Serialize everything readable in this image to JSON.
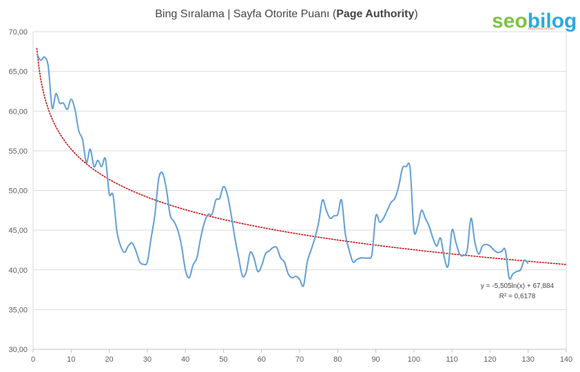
{
  "chart_data": {
    "type": "line",
    "title_prefix": "Bing Sıralama | Sayfa Otorite Puanı (",
    "title_bold": "Page Authority",
    "title_suffix": ")",
    "xlim": [
      0,
      140
    ],
    "ylim": [
      30,
      70
    ],
    "x_ticks": [
      0,
      10,
      20,
      30,
      40,
      50,
      60,
      70,
      80,
      90,
      100,
      110,
      120,
      130,
      140
    ],
    "y_ticks": [
      "30,00",
      "35,00",
      "40,00",
      "45,00",
      "50,00",
      "55,00",
      "60,00",
      "65,00",
      "70,00"
    ],
    "grid": true,
    "series": [
      {
        "color": "#5b9bd5",
        "points": [
          [
            1,
            67.2
          ],
          [
            2,
            66.4
          ],
          [
            3,
            66.8
          ],
          [
            4,
            65.6
          ],
          [
            5,
            60.4
          ],
          [
            6,
            62.2
          ],
          [
            7,
            61.0
          ],
          [
            8,
            61.0
          ],
          [
            9,
            60.2
          ],
          [
            10,
            61.5
          ],
          [
            11,
            60.2
          ],
          [
            12,
            57.5
          ],
          [
            13,
            56.4
          ],
          [
            14,
            53.5
          ],
          [
            15,
            55.2
          ],
          [
            16,
            53.0
          ],
          [
            17,
            53.8
          ],
          [
            18,
            53.0
          ],
          [
            19,
            54.0
          ],
          [
            20,
            49.6
          ],
          [
            21,
            49.4
          ],
          [
            22,
            44.9
          ],
          [
            23,
            43.0
          ],
          [
            24,
            42.2
          ],
          [
            25,
            43.0
          ],
          [
            26,
            43.4
          ],
          [
            27,
            42.4
          ],
          [
            28,
            41.0
          ],
          [
            29,
            40.7
          ],
          [
            30,
            41.0
          ],
          [
            31,
            44.0
          ],
          [
            32,
            47.0
          ],
          [
            33,
            51.5
          ],
          [
            34,
            52.2
          ],
          [
            35,
            50.2
          ],
          [
            36,
            46.9
          ],
          [
            37,
            46.1
          ],
          [
            38,
            45.0
          ],
          [
            39,
            43.0
          ],
          [
            40,
            40.0
          ],
          [
            41,
            39.0
          ],
          [
            42,
            40.6
          ],
          [
            43,
            41.5
          ],
          [
            44,
            44.0
          ],
          [
            45,
            46.0
          ],
          [
            46,
            47.0
          ],
          [
            47,
            47.0
          ],
          [
            48,
            48.8
          ],
          [
            49,
            49.0
          ],
          [
            50,
            50.5
          ],
          [
            51,
            49.5
          ],
          [
            52,
            47.0
          ],
          [
            53,
            44.0
          ],
          [
            54,
            41.5
          ],
          [
            55,
            39.2
          ],
          [
            56,
            39.8
          ],
          [
            57,
            42.2
          ],
          [
            58,
            41.5
          ],
          [
            59,
            39.8
          ],
          [
            60,
            40.5
          ],
          [
            61,
            42.0
          ],
          [
            62,
            42.4
          ],
          [
            63,
            42.8
          ],
          [
            64,
            42.8
          ],
          [
            65,
            41.5
          ],
          [
            66,
            41.0
          ],
          [
            67,
            39.5
          ],
          [
            68,
            39.0
          ],
          [
            69,
            39.2
          ],
          [
            70,
            38.8
          ],
          [
            71,
            38.0
          ],
          [
            72,
            41.0
          ],
          [
            73,
            42.5
          ],
          [
            74,
            44.0
          ],
          [
            75,
            46.0
          ],
          [
            76,
            48.8
          ],
          [
            77,
            47.5
          ],
          [
            78,
            46.5
          ],
          [
            79,
            46.8
          ],
          [
            80,
            47.0
          ],
          [
            81,
            48.8
          ],
          [
            82,
            44.5
          ],
          [
            83,
            42.5
          ],
          [
            84,
            41.0
          ],
          [
            85,
            41.3
          ],
          [
            86,
            41.5
          ],
          [
            87,
            41.5
          ],
          [
            88,
            41.5
          ],
          [
            89,
            42.0
          ],
          [
            90,
            46.8
          ],
          [
            91,
            46.0
          ],
          [
            92,
            46.5
          ],
          [
            93,
            47.5
          ],
          [
            94,
            48.5
          ],
          [
            95,
            49.0
          ],
          [
            96,
            50.5
          ],
          [
            97,
            52.8
          ],
          [
            98,
            53.0
          ],
          [
            99,
            52.8
          ],
          [
            100,
            45.0
          ],
          [
            101,
            45.5
          ],
          [
            102,
            47.5
          ],
          [
            103,
            46.5
          ],
          [
            104,
            45.5
          ],
          [
            105,
            44.0
          ],
          [
            106,
            43.0
          ],
          [
            107,
            44.0
          ],
          [
            108,
            41.5
          ],
          [
            109,
            40.5
          ],
          [
            110,
            45.0
          ],
          [
            111,
            43.5
          ],
          [
            112,
            42.0
          ],
          [
            113,
            41.8
          ],
          [
            114,
            42.5
          ],
          [
            115,
            46.5
          ],
          [
            116,
            43.5
          ],
          [
            117,
            42.0
          ],
          [
            118,
            43.0
          ],
          [
            119,
            43.2
          ],
          [
            120,
            43.0
          ],
          [
            121,
            42.5
          ],
          [
            122,
            42.2
          ],
          [
            123,
            42.3
          ],
          [
            124,
            42.5
          ],
          [
            125,
            39.0
          ],
          [
            126,
            39.5
          ],
          [
            127,
            39.8
          ],
          [
            128,
            40.0
          ],
          [
            129,
            41.2
          ],
          [
            130,
            40.8
          ]
        ]
      }
    ],
    "trendline": {
      "type": "logarithmic",
      "color": "#c00000",
      "a": -5.505,
      "b": 67.884,
      "x_start": 1,
      "x_end": 140,
      "equation_label": "y = -5,505ln(x) + 67,884",
      "r2_label": "R² = 0,6178"
    }
  },
  "logo": {
    "text_seo": "seo",
    "text_bilog": "bilog",
    "tagline": "ARAŞTIRMA HERŞEY",
    "color_green": "#7dc242",
    "color_blue": "#29a8e0"
  }
}
